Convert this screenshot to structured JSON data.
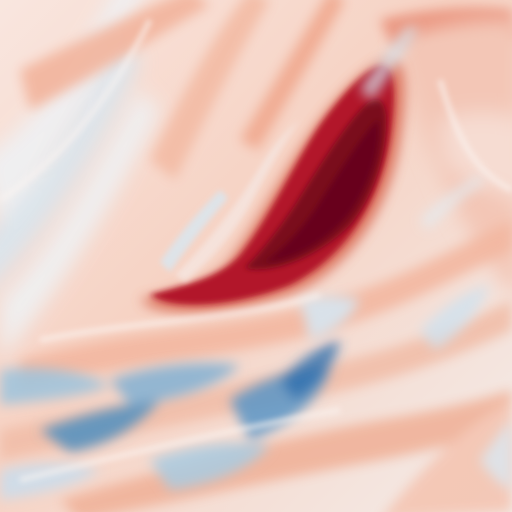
{
  "image": {
    "subject": "turbulent-flow-field",
    "colormap": [
      "#053061",
      "#2166ac",
      "#4393c3",
      "#92c5de",
      "#d1e5f0",
      "#f7f7f7",
      "#fddbc7",
      "#f4a582",
      "#d6604d",
      "#b2182b",
      "#67001f"
    ],
    "background_color": "#f7ecea",
    "dominant_feature_color": "#7a0a1e",
    "cool_region_color": "#2f6fae"
  }
}
